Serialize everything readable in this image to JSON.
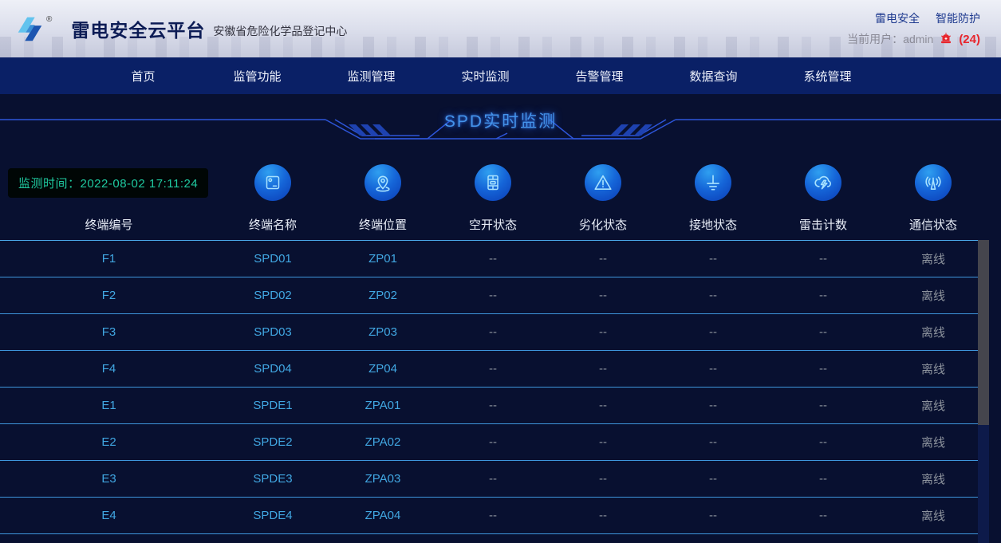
{
  "header": {
    "brand": "雷电安全云平台",
    "trademark": "®",
    "subtitle": "安徽省危险化学品登记中心",
    "link_1": "雷电安全",
    "link_2": "智能防护",
    "current_user": "当前用户：admin",
    "alarm_count": "(24)"
  },
  "nav": {
    "items": [
      {
        "label": "首页"
      },
      {
        "label": "监管功能"
      },
      {
        "label": "监测管理"
      },
      {
        "label": "实时监测"
      },
      {
        "label": "告警管理"
      },
      {
        "label": "数据查询"
      },
      {
        "label": "系统管理"
      }
    ]
  },
  "page": {
    "title": "SPD实时监测",
    "monitor_time": "监测时间：2022-08-02 17:11:24"
  },
  "table": {
    "columns": [
      {
        "label": "终端编号",
        "icon": null,
        "field": "terminal-id"
      },
      {
        "label": "终端名称",
        "icon": "terminal-device-icon",
        "field": "terminal-name"
      },
      {
        "label": "终端位置",
        "icon": "location-pin-icon",
        "field": "terminal-location"
      },
      {
        "label": "空开状态",
        "icon": "circuit-breaker-icon",
        "field": "breaker-status"
      },
      {
        "label": "劣化状态",
        "icon": "warning-triangle-icon",
        "field": "degradation-status"
      },
      {
        "label": "接地状态",
        "icon": "ground-icon",
        "field": "ground-status"
      },
      {
        "label": "雷击计数",
        "icon": "lightning-cloud-icon",
        "field": "lightning-count"
      },
      {
        "label": "通信状态",
        "icon": "antenna-icon",
        "field": "comm-status"
      }
    ],
    "rows": [
      [
        "F1",
        "SPD01",
        "ZP01",
        "--",
        "--",
        "--",
        "--",
        "离线"
      ],
      [
        "F2",
        "SPD02",
        "ZP02",
        "--",
        "--",
        "--",
        "--",
        "离线"
      ],
      [
        "F3",
        "SPD03",
        "ZP03",
        "--",
        "--",
        "--",
        "--",
        "离线"
      ],
      [
        "F4",
        "SPD04",
        "ZP04",
        "--",
        "--",
        "--",
        "--",
        "离线"
      ],
      [
        "E1",
        "SPDE1",
        "ZPA01",
        "--",
        "--",
        "--",
        "--",
        "离线"
      ],
      [
        "E2",
        "SPDE2",
        "ZPA02",
        "--",
        "--",
        "--",
        "--",
        "离线"
      ],
      [
        "E3",
        "SPDE3",
        "ZPA03",
        "--",
        "--",
        "--",
        "--",
        "离线"
      ],
      [
        "E4",
        "SPDE4",
        "ZPA04",
        "--",
        "--",
        "--",
        "--",
        "离线"
      ]
    ]
  },
  "colors": {
    "page_bg": "#081030",
    "nav_bg": "#0a2066",
    "title_blue": "#4493ea",
    "badge_text": "#1fc9a0",
    "data_accent": "#41a7e2",
    "data_muted": "#8d939d",
    "separator": "#3e96dc",
    "alarm_red": "#e8262d"
  }
}
